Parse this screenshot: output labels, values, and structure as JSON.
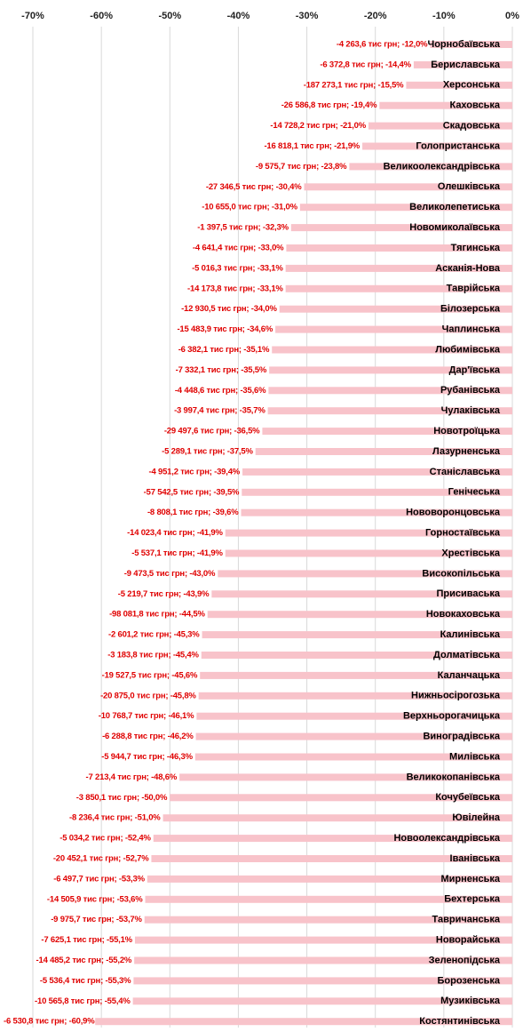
{
  "chart_data": {
    "type": "bar",
    "orientation": "horizontal",
    "color": "#f8c3ca",
    "label_color": "#e00000",
    "xlim": [
      -70,
      0
    ],
    "xticks": [
      {
        "value": -70,
        "label": "-70%"
      },
      {
        "value": -60,
        "label": "-60%"
      },
      {
        "value": -50,
        "label": "-50%"
      },
      {
        "value": -40,
        "label": "-40%"
      },
      {
        "value": -30,
        "label": "-30%"
      },
      {
        "value": -20,
        "label": "-20%"
      },
      {
        "value": -10,
        "label": "-10%"
      },
      {
        "value": 0,
        "label": "0%"
      }
    ],
    "grid": true,
    "categories": [
      "Чорнобаївська",
      "Бериславська",
      "Херсонська",
      "Каховська",
      "Скадовська",
      "Голопристанська",
      "Великоолександрівська",
      "Олешківська",
      "Великолепетиська",
      "Новомиколаївська",
      "Тягинська",
      "Асканія-Нова",
      "Таврійська",
      "Білозерська",
      "Чаплинська",
      "Любимівська",
      "Дар'ївська",
      "Рубанівська",
      "Чулаківська",
      "Новотроїцька",
      "Лазурненська",
      "Станіславська",
      "Генічеська",
      "Нововоронцовська",
      "Горностаївська",
      "Хрестівська",
      "Високопільська",
      "Присиваська",
      "Новокаховська",
      "Калинівська",
      "Долматівська",
      "Каланчацька",
      "Нижньосірогозька",
      "Верхньорогачицька",
      "Виноградівська",
      "Милівська",
      "Великокопанівська",
      "Кочубеївська",
      "Ювілейна",
      "Новоолександрівська",
      "Іванівська",
      "Мирненська",
      "Бехтерська",
      "Тавричанська",
      "Новорайська",
      "Зеленопідська",
      "Борозенська",
      "Музиківська",
      "Костянтинівська"
    ],
    "values": [
      -12.0,
      -14.4,
      -15.5,
      -19.4,
      -21.0,
      -21.9,
      -23.8,
      -30.4,
      -31.0,
      -32.3,
      -33.0,
      -33.1,
      -33.1,
      -34.0,
      -34.6,
      -35.1,
      -35.5,
      -35.6,
      -35.7,
      -36.5,
      -37.5,
      -39.4,
      -39.5,
      -39.6,
      -41.9,
      -41.9,
      -43.0,
      -43.9,
      -44.5,
      -45.3,
      -45.4,
      -45.6,
      -45.8,
      -46.1,
      -46.2,
      -46.3,
      -48.6,
      -50.0,
      -51.0,
      -52.4,
      -52.7,
      -53.3,
      -53.6,
      -53.7,
      -55.1,
      -55.2,
      -55.3,
      -55.4,
      -60.9
    ],
    "value_labels": [
      "-4 263,6 тис грн; -12,0%",
      "-6 372,8 тис грн; -14,4%",
      "-187 273,1 тис грн; -15,5%",
      "-26 586,8 тис грн; -19,4%",
      "-14 728,2 тис грн; -21,0%",
      "-16 818,1 тис грн; -21,9%",
      "-9 575,7 тис грн; -23,8%",
      "-27 346,5 тис грн; -30,4%",
      "-10 655,0 тис грн; -31,0%",
      "-1 397,5 тис грн; -32,3%",
      "-4 641,4 тис грн; -33,0%",
      "-5 016,3 тис грн; -33,1%",
      "-14 173,8 тис грн; -33,1%",
      "-12 930,5 тис грн; -34,0%",
      "-15 483,9 тис грн; -34,6%",
      "-6 382,1 тис грн; -35,1%",
      "-7 332,1 тис грн; -35,5%",
      "-4 448,6 тис грн; -35,6%",
      "-3 997,4 тис грн; -35,7%",
      "-29 497,6 тис грн; -36,5%",
      "-5 289,1 тис грн; -37,5%",
      "-4 951,2 тис грн; -39,4%",
      "-57 542,5 тис грн; -39,5%",
      "-8 808,1 тис грн; -39,6%",
      "-14 023,4 тис грн; -41,9%",
      "-5 537,1 тис грн; -41,9%",
      "-9 473,5 тис грн; -43,0%",
      "-5 219,7 тис грн; -43,9%",
      "-98 081,8 тис грн; -44,5%",
      "-2 601,2 тис грн; -45,3%",
      "-3 183,8 тис грн; -45,4%",
      "-19 527,5 тис грн; -45,6%",
      "-20 875,0 тис грн; -45,8%",
      "-10 768,7 тис грн; -46,1%",
      "-6 288,8 тис грн; -46,2%",
      "-5 944,7 тис грн; -46,3%",
      "-7 213,4 тис грн; -48,6%",
      "-3 850,1 тис грн; -50,0%",
      "-8 236,4 тис грн; -51,0%",
      "-5 034,2 тис грн; -52,4%",
      "-20 452,1 тис грн; -52,7%",
      "-6 497,7 тис грн; -53,3%",
      "-14 505,9 тис грн; -53,6%",
      "-9 975,7 тис грн; -53,7%",
      "-7 625,1 тис грн; -55,1%",
      "-14 485,2 тис грн; -55,2%",
      "-5 536,4 тис грн; -55,3%",
      "-10 565,8 тис грн; -55,4%",
      "-6 530,8 тис грн; -60,9%"
    ]
  }
}
